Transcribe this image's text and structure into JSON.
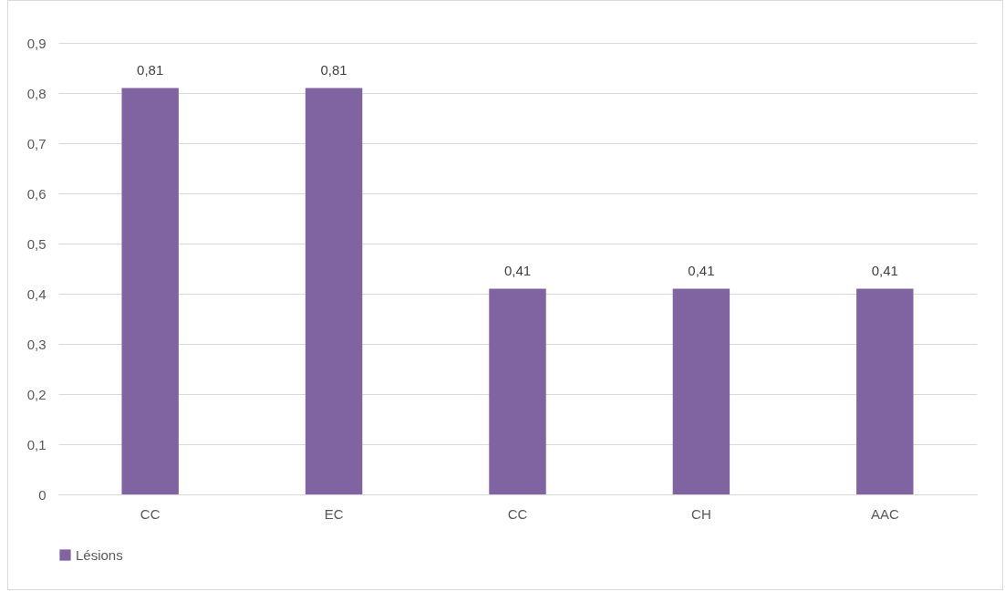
{
  "chart_data": {
    "type": "bar",
    "categories": [
      "CC",
      "EC",
      "CC",
      "CH",
      "AAC"
    ],
    "series": [
      {
        "name": "Lésions",
        "color": "#8064a2",
        "values": [
          0.81,
          0.81,
          0.41,
          0.41,
          0.41
        ],
        "value_labels": [
          "0,81",
          "0,81",
          "0,41",
          "0,41",
          "0,41"
        ]
      }
    ],
    "ylim": [
      0,
      0.9
    ],
    "yticks": [
      0,
      {
        "value": 0.1,
        "label": "0,1"
      },
      {
        "value": 0.2,
        "label": "0,2"
      },
      {
        "value": 0.3,
        "label": "0,3"
      },
      {
        "value": 0.4,
        "label": "0,4"
      },
      {
        "value": 0.5,
        "label": "0,5"
      },
      {
        "value": 0.6,
        "label": "0,6"
      },
      {
        "value": 0.7,
        "label": "0,7"
      },
      {
        "value": 0.8,
        "label": "0,8"
      },
      {
        "value": 0.9,
        "label": "0,9"
      }
    ],
    "grid": "y",
    "legend": "bottom"
  }
}
